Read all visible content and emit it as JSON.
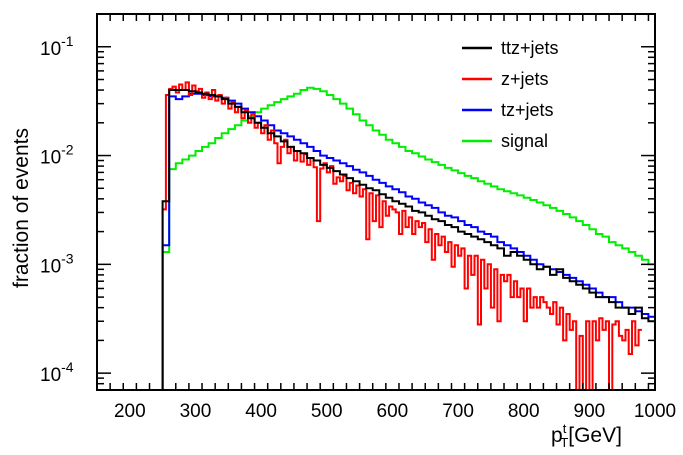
{
  "chart_data": {
    "type": "line",
    "style": "step histogram",
    "xlabel": "p_T^t [GeV]",
    "xlabel_parts": {
      "main": "p",
      "sup": "t",
      "sub": "T",
      "unit": "[GeV]"
    },
    "ylabel": "fraction of events",
    "xlim": [
      150,
      1000
    ],
    "ylim": [
      7e-05,
      0.2
    ],
    "y_scale": "log",
    "grid": false,
    "legend_position": "top-right",
    "x_ticks": [
      200,
      300,
      400,
      500,
      600,
      700,
      800,
      900,
      1000
    ],
    "y_ticks": [
      {
        "value": 0.1,
        "mantissa": "10",
        "exponent": "-1"
      },
      {
        "value": 0.01,
        "mantissa": "10",
        "exponent": "-2"
      },
      {
        "value": 0.001,
        "mantissa": "10",
        "exponent": "-3"
      },
      {
        "value": 0.0001,
        "mantissa": "10",
        "exponent": "-4"
      }
    ],
    "series": [
      {
        "name": "ttz+jets",
        "color": "#000000",
        "x_start": 240,
        "bin_width": 10,
        "values": [
          0,
          0.0038,
          0.04,
          0.04,
          0.04,
          0.039,
          0.038,
          0.037,
          0.036,
          0.035,
          0.033,
          0.03,
          0.028,
          0.025,
          0.022,
          0.02,
          0.018,
          0.016,
          0.015,
          0.0135,
          0.012,
          0.011,
          0.0105,
          0.0095,
          0.009,
          0.0082,
          0.0077,
          0.0072,
          0.0067,
          0.0062,
          0.0058,
          0.0054,
          0.005,
          0.0048,
          0.0044,
          0.0041,
          0.0038,
          0.0036,
          0.0034,
          0.0031,
          0.003,
          0.0028,
          0.0026,
          0.0025,
          0.0023,
          0.0022,
          0.002,
          0.0019,
          0.0018,
          0.0017,
          0.0016,
          0.0015,
          0.0014,
          0.0012,
          0.0013,
          0.0012,
          0.0011,
          0.001,
          0.0009,
          0.00095,
          0.0008,
          0.0009,
          0.00075,
          0.0007,
          0.00065,
          0.0006,
          0.00055,
          0.0005,
          0.0005,
          0.00045,
          0.0004,
          0.0004,
          0.00035,
          0.0004,
          0.00032,
          0.0003,
          0.00033,
          0.00028
        ]
      },
      {
        "name": "z+jets",
        "color": "#ff0000",
        "x_start": 240,
        "bin_width": 5,
        "values": [
          0,
          0,
          0.0032,
          0.036,
          0.041,
          0.043,
          0.038,
          0.045,
          0.04,
          0.047,
          0.036,
          0.044,
          0.039,
          0.041,
          0.034,
          0.038,
          0.033,
          0.04,
          0.032,
          0.036,
          0.03,
          0.034,
          0.027,
          0.031,
          0.025,
          0.028,
          0.022,
          0.026,
          0.02,
          0.024,
          0.018,
          0.02,
          0.016,
          0.019,
          0.014,
          0.017,
          0.013,
          0.0085,
          0.012,
          0.014,
          0.0105,
          0.012,
          0.009,
          0.011,
          0.0088,
          0.0103,
          0.0082,
          0.0095,
          0.0078,
          0.0025,
          0.0076,
          0.0085,
          0.007,
          0.008,
          0.0055,
          0.0063,
          0.0058,
          0.0065,
          0.0048,
          0.0056,
          0.0045,
          0.0053,
          0.0042,
          0.0049,
          0.0017,
          0.0045,
          0.0025,
          0.0043,
          0.0022,
          0.0038,
          0.0028,
          0.0034,
          0.0032,
          0.003,
          0.0019,
          0.0031,
          0.0022,
          0.0027,
          0.0019,
          0.0025,
          0.0022,
          0.0024,
          0.0016,
          0.0021,
          0.0011,
          0.0019,
          0.0015,
          0.0018,
          0.0013,
          0.0016,
          0.00095,
          0.0015,
          0.0012,
          0.0014,
          0.0006,
          0.0012,
          0.0008,
          0.0012,
          0.00028,
          0.0011,
          0.0006,
          0.001,
          0.0004,
          0.0009,
          0.0003,
          0.0008,
          0.0007,
          0.0008,
          0.0005,
          0.0007,
          0.0005,
          0.0006,
          0.0003,
          0.0006,
          0.0004,
          0.0005,
          0.0004,
          0.0005,
          0.00045,
          0.0004,
          0.00035,
          0.00045,
          0.00028,
          0.0004,
          0.0002,
          0.00035,
          0.00025,
          0.0003,
          7e-05,
          0.00022,
          7e-05,
          0.0003,
          7e-05,
          0.0003,
          0.0002,
          0.00032,
          0.00025,
          0.0003,
          7e-05,
          0.00028,
          0.0003,
          0.00022,
          0.0002,
          0.00025,
          0.00015,
          0.0003,
          0.00018,
          0.00025
        ]
      },
      {
        "name": "tz+jets",
        "color": "#0000ff",
        "x_start": 240,
        "bin_width": 10,
        "values": [
          0,
          0.0015,
          0.035,
          0.033,
          0.035,
          0.037,
          0.037,
          0.036,
          0.035,
          0.035,
          0.034,
          0.032,
          0.03,
          0.027,
          0.025,
          0.023,
          0.021,
          0.019,
          0.017,
          0.016,
          0.015,
          0.014,
          0.013,
          0.012,
          0.011,
          0.01,
          0.0095,
          0.009,
          0.0085,
          0.008,
          0.0074,
          0.007,
          0.0065,
          0.006,
          0.0056,
          0.0052,
          0.0049,
          0.0046,
          0.0042,
          0.004,
          0.0037,
          0.0035,
          0.0033,
          0.003,
          0.0028,
          0.0027,
          0.0025,
          0.0023,
          0.0022,
          0.002,
          0.0019,
          0.0018,
          0.0016,
          0.0015,
          0.0014,
          0.0013,
          0.0012,
          0.0011,
          0.001,
          0.00095,
          0.0009,
          0.00085,
          0.0008,
          0.00075,
          0.0007,
          0.00065,
          0.0006,
          0.00055,
          0.0005,
          0.0005,
          0.00045,
          0.0004,
          0.0004,
          0.00037,
          0.00035,
          0.00033,
          0.0003,
          0.00028
        ]
      },
      {
        "name": "signal",
        "color": "#00ee00",
        "x_start": 150,
        "bin_width": 10,
        "values": [
          7e-05,
          7e-05,
          7e-05,
          7e-05,
          7e-05,
          7e-05,
          7e-05,
          7e-05,
          7e-05,
          7e-05,
          0.0013,
          0.0075,
          0.0085,
          0.0092,
          0.01,
          0.011,
          0.012,
          0.013,
          0.0145,
          0.016,
          0.0175,
          0.019,
          0.021,
          0.023,
          0.025,
          0.027,
          0.029,
          0.031,
          0.033,
          0.035,
          0.037,
          0.04,
          0.042,
          0.041,
          0.039,
          0.036,
          0.033,
          0.03,
          0.027,
          0.024,
          0.021,
          0.019,
          0.017,
          0.0155,
          0.014,
          0.013,
          0.012,
          0.011,
          0.0105,
          0.0098,
          0.0092,
          0.0087,
          0.0082,
          0.0077,
          0.0073,
          0.0069,
          0.0065,
          0.0062,
          0.0058,
          0.0055,
          0.0052,
          0.0049,
          0.0047,
          0.0045,
          0.0043,
          0.0041,
          0.0039,
          0.0037,
          0.0035,
          0.0033,
          0.0031,
          0.0029,
          0.0027,
          0.0025,
          0.0023,
          0.0021,
          0.0019,
          0.0018,
          0.0016,
          0.0015,
          0.0014,
          0.0013,
          0.0012,
          0.0011,
          0.001
        ]
      }
    ]
  }
}
